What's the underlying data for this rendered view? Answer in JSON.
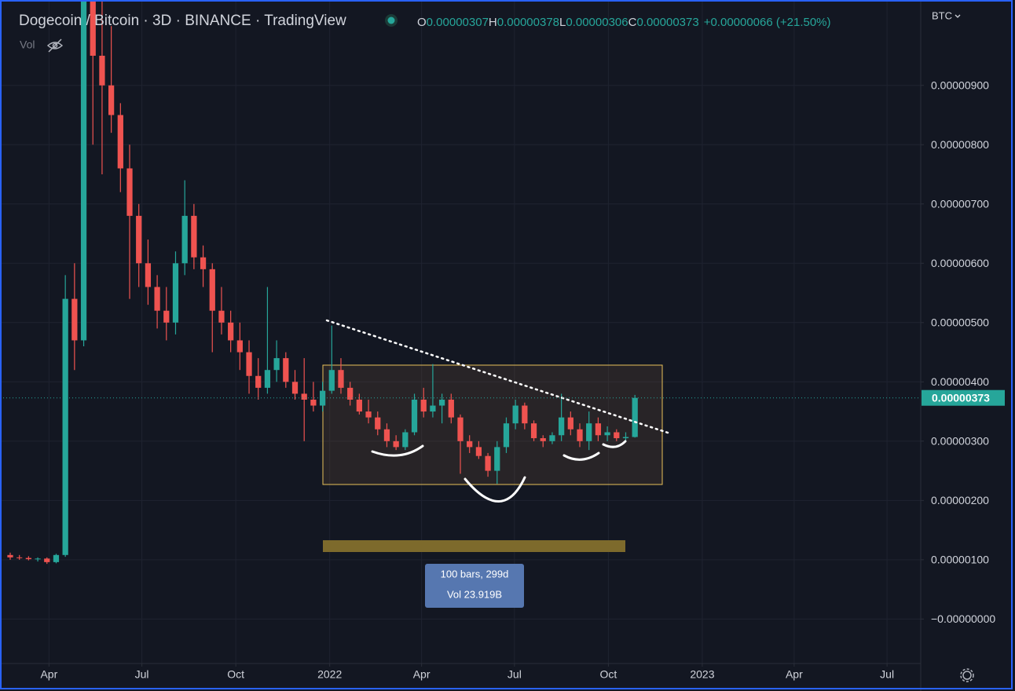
{
  "chart_data": {
    "type": "candlestick",
    "title": "Dogecoin / Bitcoin · 3D · BINANCE · TradingView",
    "ohlc_header": [
      {
        "key": "O",
        "value": "0.00000307"
      },
      {
        "key": "H",
        "value": "0.00000378"
      },
      {
        "key": "L",
        "value": "0.00000306"
      },
      {
        "key": "C",
        "value": "0.00000373"
      }
    ],
    "change": "+0.00000066 (+21.50%)",
    "volume_label": "Vol",
    "currency": "BTC",
    "measure": {
      "bars": "100 bars, 299d",
      "volume": "Vol 23.919B"
    },
    "last_price": {
      "value": 3.73e-06,
      "label": "0.00000373"
    },
    "up_color": "#26a69a",
    "down_color": "#ef5350",
    "grid": true,
    "xlim": [
      "2021-02-12",
      "2023-08-03"
    ],
    "xticks": [
      {
        "value": "2021-04-01",
        "label": "Apr"
      },
      {
        "value": "2021-07-01",
        "label": "Jul"
      },
      {
        "value": "2021-10-01",
        "label": "Oct"
      },
      {
        "value": "2022-01-01",
        "label": "2022"
      },
      {
        "value": "2022-04-01",
        "label": "Apr"
      },
      {
        "value": "2022-07-01",
        "label": "Jul"
      },
      {
        "value": "2022-10-01",
        "label": "Oct"
      },
      {
        "value": "2023-01-01",
        "label": "2023"
      },
      {
        "value": "2023-04-01",
        "label": "Apr"
      },
      {
        "value": "2023-07-01",
        "label": "Jul"
      }
    ],
    "ylim": [
      -7.5e-07,
      1.044e-05
    ],
    "yticks": [
      {
        "value": 9e-06,
        "label": "0.00000900"
      },
      {
        "value": 8e-06,
        "label": "0.00000800"
      },
      {
        "value": 7e-06,
        "label": "0.00000700"
      },
      {
        "value": 6e-06,
        "label": "0.00000600"
      },
      {
        "value": 5e-06,
        "label": "0.00000500"
      },
      {
        "value": 4e-06,
        "label": "0.00000400"
      },
      {
        "value": 3e-06,
        "label": "0.00000300"
      },
      {
        "value": 2e-06,
        "label": "0.00000200"
      },
      {
        "value": 1e-06,
        "label": "0.00000100"
      },
      {
        "value": 0,
        "label": "−0.00000000"
      }
    ],
    "candles": {
      "x": [
        "2021-02-22",
        "2021-03-03",
        "2021-03-12",
        "2021-03-21",
        "2021-03-30",
        "2021-04-08",
        "2021-04-17",
        "2021-04-26",
        "2021-05-05",
        "2021-05-14",
        "2021-05-23",
        "2021-06-01",
        "2021-06-10",
        "2021-06-19",
        "2021-06-28",
        "2021-07-07",
        "2021-07-16",
        "2021-07-25",
        "2021-08-03",
        "2021-08-12",
        "2021-08-21",
        "2021-08-30",
        "2021-09-08",
        "2021-09-17",
        "2021-09-26",
        "2021-10-05",
        "2021-10-14",
        "2021-10-23",
        "2021-11-01",
        "2021-11-10",
        "2021-11-19",
        "2021-11-28",
        "2021-12-07",
        "2021-12-16",
        "2021-12-25",
        "2022-01-03",
        "2022-01-12",
        "2022-01-21",
        "2022-01-30",
        "2022-02-08",
        "2022-02-17",
        "2022-02-26",
        "2022-03-07",
        "2022-03-16",
        "2022-03-25",
        "2022-04-03",
        "2022-04-12",
        "2022-04-21",
        "2022-04-30",
        "2022-05-09",
        "2022-05-18",
        "2022-05-27",
        "2022-06-05",
        "2022-06-14",
        "2022-06-23",
        "2022-07-02",
        "2022-07-11",
        "2022-07-20",
        "2022-07-29",
        "2022-08-07",
        "2022-08-16",
        "2022-08-25",
        "2022-09-03",
        "2022-09-12",
        "2022-09-21",
        "2022-09-30",
        "2022-10-09",
        "2022-10-18",
        "2022-10-27"
      ],
      "open": [
        1.08e-06,
        1.04e-06,
        1.03e-06,
        1.01e-06,
        1.02e-06,
        9.6e-07,
        1.08e-06,
        5.4e-06,
        4.7e-06,
        1.05e-05,
        9.5e-06,
        9e-06,
        8.5e-06,
        7.6e-06,
        6.8e-06,
        6e-06,
        5.6e-06,
        5.2e-06,
        5e-06,
        6e-06,
        6.8e-06,
        6.1e-06,
        5.9e-06,
        5.2e-06,
        5e-06,
        4.7e-06,
        4.5e-06,
        4.1e-06,
        3.9e-06,
        4.2e-06,
        4.4e-06,
        4e-06,
        3.8e-06,
        3.7e-06,
        3.6e-06,
        3.85e-06,
        4.2e-06,
        3.9e-06,
        3.7e-06,
        3.5e-06,
        3.4e-06,
        3.2e-06,
        3e-06,
        2.9e-06,
        3.15e-06,
        3.7e-06,
        3.5e-06,
        3.6e-06,
        3.7e-06,
        3.4e-06,
        3e-06,
        2.9e-06,
        2.75e-06,
        2.5e-06,
        2.9e-06,
        3.3e-06,
        3.6e-06,
        3.3e-06,
        3.05e-06,
        3e-06,
        3.1e-06,
        3.4e-06,
        3.2e-06,
        3e-06,
        3.3e-06,
        3.1e-06,
        3.15e-06,
        3.05e-06,
        3.07e-06
      ],
      "high": [
        1.12e-06,
        1.08e-06,
        1.06e-06,
        1.04e-06,
        1.04e-06,
        1.1e-06,
        5.8e-06,
        6e-06,
        1.15e-05,
        1.25e-05,
        1.1e-05,
        1e-05,
        8.7e-06,
        8e-06,
        7e-06,
        6.4e-06,
        5.8e-06,
        5.6e-06,
        6.2e-06,
        7.4e-06,
        7e-06,
        6.3e-06,
        6e-06,
        5.6e-06,
        5.2e-06,
        5e-06,
        4.7e-06,
        4.4e-06,
        5.6e-06,
        4.7e-06,
        4.5e-06,
        4.2e-06,
        4.4e-06,
        4e-06,
        4e-06,
        4.95e-06,
        4.4e-06,
        4e-06,
        3.8e-06,
        3.7e-06,
        3.5e-06,
        3.3e-06,
        3.1e-06,
        3.2e-06,
        3.8e-06,
        3.9e-06,
        4.3e-06,
        3.8e-06,
        3.8e-06,
        3.45e-06,
        3.1e-06,
        3e-06,
        2.8e-06,
        3e-06,
        3.4e-06,
        3.7e-06,
        3.65e-06,
        3.35e-06,
        3.1e-06,
        3.15e-06,
        3.8e-06,
        3.5e-06,
        3.3e-06,
        3.5e-06,
        3.4e-06,
        3.25e-06,
        3.2e-06,
        3.15e-06,
        3.78e-06
      ],
      "low": [
        1e-06,
        1e-06,
        9.9e-07,
        9.7e-07,
        9.3e-07,
        9.4e-07,
        1.05e-06,
        4.2e-06,
        4.6e-06,
        8e-06,
        7.5e-06,
        8.2e-06,
        7.2e-06,
        5.4e-06,
        5.6e-06,
        5.3e-06,
        4.9e-06,
        4.7e-06,
        4.8e-06,
        5.8e-06,
        5.9e-06,
        5.6e-06,
        4.5e-06,
        4.8e-06,
        4.5e-06,
        4.2e-06,
        3.8e-06,
        3.7e-06,
        3.8e-06,
        4e-06,
        3.9e-06,
        3.7e-06,
        3e-06,
        3.5e-06,
        3.5e-06,
        3.8e-06,
        3.8e-06,
        3.6e-06,
        3.45e-06,
        3.3e-06,
        3.1e-06,
        2.9e-06,
        2.85e-06,
        2.85e-06,
        3.1e-06,
        3.4e-06,
        3.4e-06,
        3.3e-06,
        3.3e-06,
        2.45e-06,
        2.8e-06,
        2.7e-06,
        2.4e-06,
        2.28e-06,
        2.8e-06,
        3.2e-06,
        3.2e-06,
        3e-06,
        2.9e-06,
        2.95e-06,
        3e-06,
        3.1e-06,
        2.9e-06,
        2.85e-06,
        3e-06,
        3e-06,
        3e-06,
        3e-06,
        3.06e-06
      ],
      "close": [
        1.04e-06,
        1.03e-06,
        1.01e-06,
        1.02e-06,
        9.6e-07,
        1.08e-06,
        5.4e-06,
        4.7e-06,
        1.05e-05,
        9.5e-06,
        9e-06,
        8.5e-06,
        7.6e-06,
        6.8e-06,
        6e-06,
        5.6e-06,
        5.2e-06,
        5e-06,
        6e-06,
        6.8e-06,
        6.1e-06,
        5.9e-06,
        5.2e-06,
        5e-06,
        4.7e-06,
        4.5e-06,
        4.1e-06,
        3.9e-06,
        4.2e-06,
        4.4e-06,
        4e-06,
        3.8e-06,
        3.7e-06,
        3.6e-06,
        3.85e-06,
        4.2e-06,
        3.9e-06,
        3.7e-06,
        3.5e-06,
        3.4e-06,
        3.2e-06,
        3e-06,
        2.9e-06,
        3.15e-06,
        3.7e-06,
        3.5e-06,
        3.6e-06,
        3.7e-06,
        3.4e-06,
        3e-06,
        2.9e-06,
        2.75e-06,
        2.5e-06,
        2.9e-06,
        3.3e-06,
        3.6e-06,
        3.3e-06,
        3.05e-06,
        3e-06,
        3.1e-06,
        3.4e-06,
        3.2e-06,
        3e-06,
        3.3e-06,
        3.1e-06,
        3.15e-06,
        3.05e-06,
        3.07e-06,
        3.73e-06
      ]
    }
  }
}
